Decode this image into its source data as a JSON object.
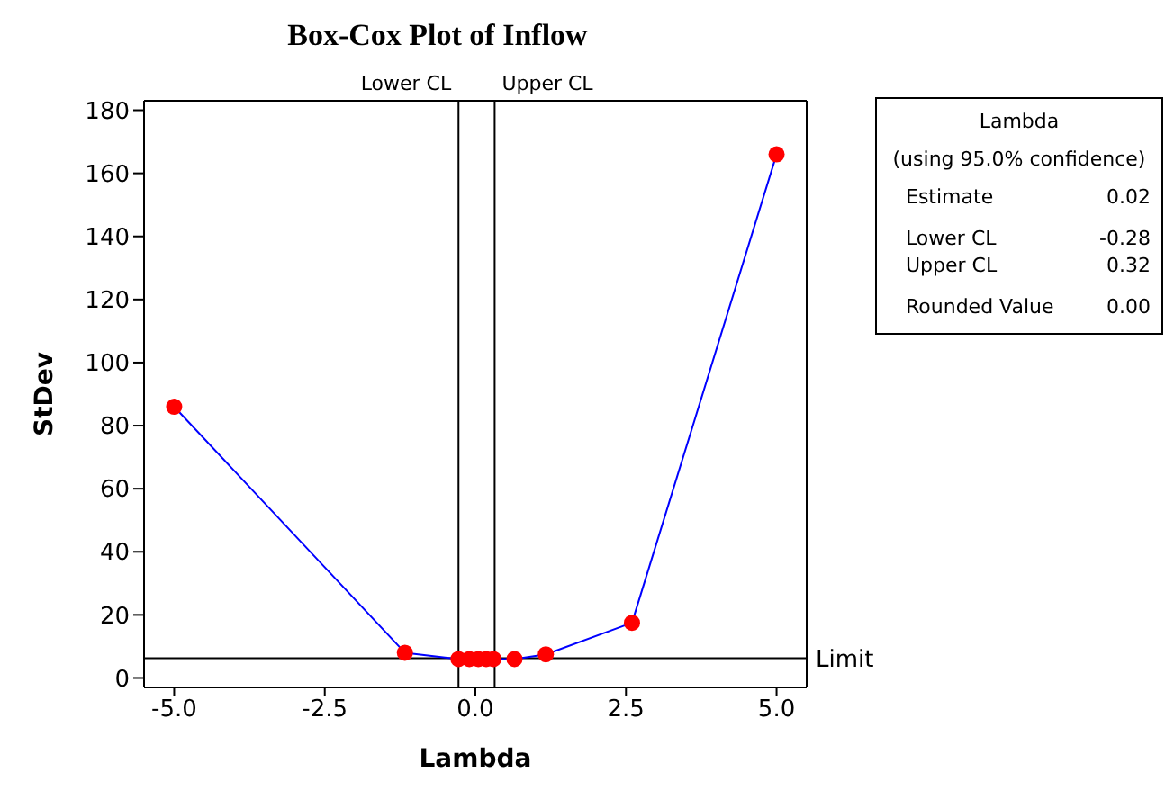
{
  "chart_data": {
    "type": "line",
    "title": "Box-Cox Plot of Inflow",
    "xlabel": "Lambda",
    "ylabel": "StDev",
    "x": [
      -5,
      -1.17,
      -0.28,
      -0.1,
      0.05,
      0.18,
      0.3,
      0.65,
      1.17,
      2.6,
      5
    ],
    "series": [
      {
        "color": "#0000ff",
        "colors": [
          "#ff0000",
          "#ff0000",
          "#ff0000",
          "#ff0000",
          "#ff0000",
          "#ff0000",
          "#ff0000",
          "#ff0000",
          "#ff0000",
          "#ff0000",
          "#ff0000"
        ],
        "values": [
          86,
          8,
          6,
          6,
          6,
          6,
          6,
          6,
          7.5,
          17.5,
          166
        ]
      }
    ],
    "xlim": [
      -5.5,
      5.5
    ],
    "xticks": [
      {
        "value": -5,
        "label": "-5.0"
      },
      -2.5,
      {
        "value": 0,
        "label": "0.0"
      },
      2.5,
      {
        "value": 5,
        "label": "5.0"
      }
    ],
    "ylim": [
      -3,
      183
    ],
    "yticks": [
      0,
      20,
      40,
      60,
      80,
      100,
      120,
      140,
      160,
      180
    ],
    "ref_lines": [
      {
        "axis": "x",
        "value": -0.28,
        "label": "Lower CL"
      },
      {
        "axis": "x",
        "value": 0.32,
        "label": "Upper CL"
      },
      {
        "axis": "y",
        "value": 6.3,
        "label": "Limit"
      }
    ],
    "annotations": [
      "Lambda",
      "(using 95.0% confidence)",
      "Estimate",
      "0.02",
      "Lower CL",
      "-0.28",
      "Upper CL",
      "0.32",
      "Rounded Value",
      "0.00"
    ],
    "marker": "circle",
    "grid": false,
    "legend": false
  }
}
